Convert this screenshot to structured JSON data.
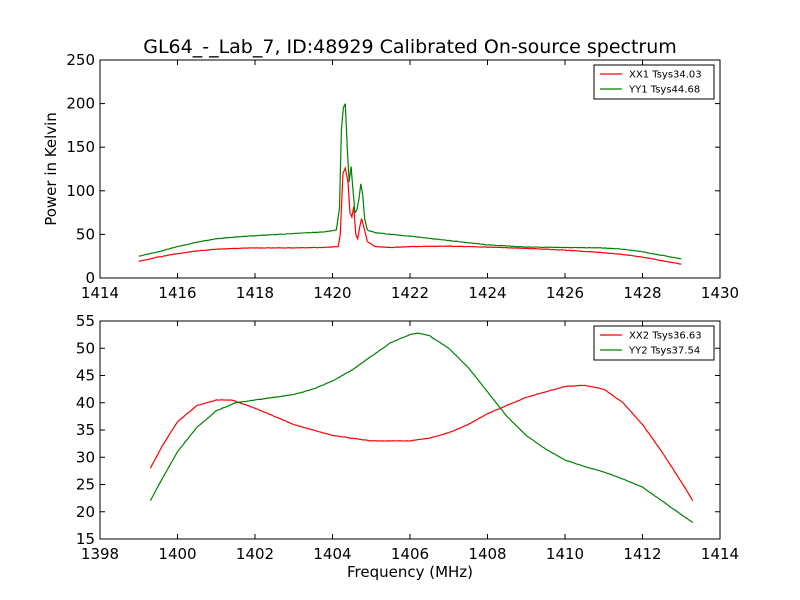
{
  "title": "GL64_-_Lab_7, ID:48929 Calibrated On-source spectrum",
  "chart_data": [
    {
      "type": "line",
      "xlabel": "",
      "ylabel": "Power in Kelvin",
      "xlim": [
        1414,
        1430
      ],
      "ylim": [
        0,
        250
      ],
      "xticks": [
        "1414",
        "1416",
        "1418",
        "1420",
        "1422",
        "1424",
        "1426",
        "1428",
        "1430"
      ],
      "yticks": [
        "0",
        "50",
        "100",
        "150",
        "200",
        "250"
      ],
      "grid": false,
      "legend_position": "top-right",
      "series": [
        {
          "name": "XX1 Tsys34.03",
          "color": "#ff0000",
          "x": [
            1415.0,
            1415.5,
            1416.0,
            1416.5,
            1417.0,
            1417.5,
            1418.0,
            1419.0,
            1419.8,
            1420.15,
            1420.2,
            1420.27,
            1420.33,
            1420.4,
            1420.45,
            1420.5,
            1420.55,
            1420.6,
            1420.65,
            1420.7,
            1420.75,
            1420.8,
            1420.9,
            1421.1,
            1421.5,
            1422.0,
            1423.0,
            1424.0,
            1425.0,
            1426.0,
            1427.0,
            1427.5,
            1428.0,
            1428.5,
            1429.0
          ],
          "values": [
            19,
            24,
            28,
            31,
            33,
            34,
            34.5,
            34.5,
            35,
            36,
            50,
            120,
            126,
            110,
            75,
            70,
            82,
            50,
            45,
            58,
            68,
            60,
            42,
            36,
            35,
            36,
            36.5,
            35.5,
            34,
            32,
            29,
            27,
            24,
            20,
            16
          ]
        },
        {
          "name": "YY1 Tsys44.68",
          "color": "#008000",
          "x": [
            1415.0,
            1415.5,
            1416.0,
            1416.5,
            1417.0,
            1417.5,
            1418.0,
            1419.0,
            1419.8,
            1420.1,
            1420.18,
            1420.23,
            1420.28,
            1420.33,
            1420.38,
            1420.43,
            1420.48,
            1420.53,
            1420.58,
            1420.63,
            1420.68,
            1420.73,
            1420.78,
            1420.83,
            1420.9,
            1421.1,
            1421.5,
            1422.0,
            1423.0,
            1424.0,
            1425.0,
            1426.0,
            1427.0,
            1427.5,
            1428.0,
            1428.5,
            1429.0
          ],
          "values": [
            25,
            30,
            36,
            41,
            45,
            47,
            48.5,
            51,
            53,
            55,
            80,
            170,
            195,
            200,
            150,
            110,
            128,
            100,
            75,
            78,
            90,
            108,
            95,
            68,
            55,
            52,
            50,
            48,
            43,
            38,
            35.5,
            35,
            34.5,
            33,
            30,
            26,
            22
          ]
        }
      ]
    },
    {
      "type": "line",
      "xlabel": "Frequency (MHz)",
      "ylabel": "",
      "xlim": [
        1398,
        1414
      ],
      "ylim": [
        15,
        55
      ],
      "xticks": [
        "1398",
        "1400",
        "1402",
        "1404",
        "1406",
        "1408",
        "1410",
        "1412",
        "1414"
      ],
      "yticks": [
        "15",
        "20",
        "25",
        "30",
        "35",
        "40",
        "45",
        "50",
        "55"
      ],
      "grid": false,
      "legend_position": "top-right",
      "series": [
        {
          "name": "XX2 Tsys36.63",
          "color": "#ff0000",
          "x": [
            1399.3,
            1399.6,
            1400.0,
            1400.5,
            1401.0,
            1401.4,
            1402.0,
            1402.5,
            1403.0,
            1403.5,
            1404.0,
            1404.5,
            1405.0,
            1405.5,
            1406.0,
            1406.5,
            1407.0,
            1407.5,
            1408.0,
            1408.5,
            1409.0,
            1409.5,
            1410.0,
            1410.5,
            1411.0,
            1411.5,
            1412.0,
            1412.5,
            1413.0,
            1413.3
          ],
          "values": [
            28,
            32,
            36.5,
            39.5,
            40.5,
            40.5,
            39,
            37.5,
            36,
            35,
            34,
            33.5,
            33,
            33,
            33,
            33.5,
            34.5,
            36,
            38,
            39.5,
            41,
            42,
            43,
            43.2,
            42.5,
            40,
            36,
            31,
            25.5,
            22
          ]
        },
        {
          "name": "YY2 Tsys37.54",
          "color": "#008000",
          "x": [
            1399.3,
            1399.6,
            1400.0,
            1400.5,
            1401.0,
            1401.5,
            1402.0,
            1402.5,
            1403.0,
            1403.5,
            1404.0,
            1404.5,
            1405.0,
            1405.5,
            1406.0,
            1406.2,
            1406.5,
            1407.0,
            1407.5,
            1408.0,
            1408.5,
            1409.0,
            1409.5,
            1410.0,
            1410.5,
            1411.0,
            1411.5,
            1412.0,
            1412.5,
            1413.0,
            1413.3
          ],
          "values": [
            22,
            26,
            31,
            35.5,
            38.5,
            40,
            40.5,
            41,
            41.5,
            42.5,
            44,
            46,
            48.5,
            51,
            52.5,
            52.8,
            52.3,
            50,
            46.5,
            42,
            37.5,
            34,
            31.5,
            29.5,
            28.3,
            27.3,
            26,
            24.5,
            22,
            19.5,
            18
          ]
        }
      ]
    }
  ]
}
